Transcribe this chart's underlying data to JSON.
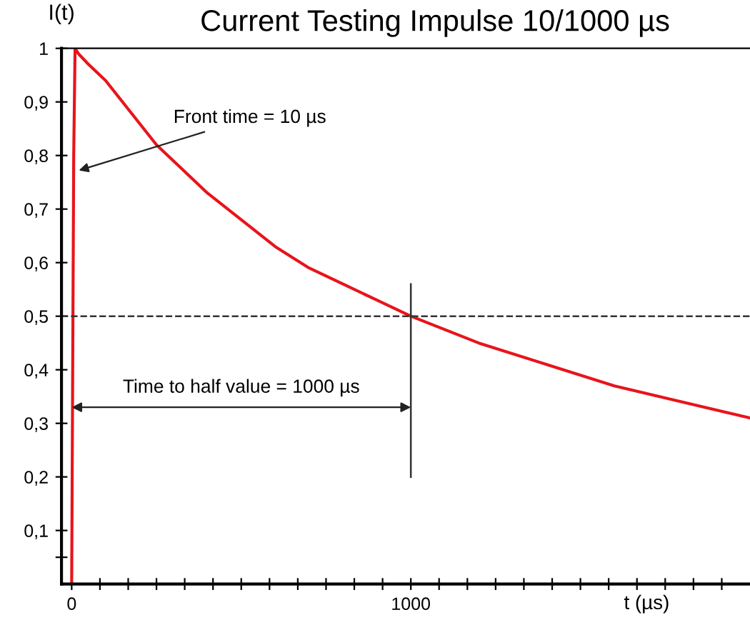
{
  "chart_data": {
    "type": "line",
    "title": "Current Testing Impulse 10/1000 µs",
    "xlabel": "t (µs)",
    "ylabel": "I(t)",
    "series": [
      {
        "color": "#e8141b",
        "x": [
          0,
          3,
          6,
          10,
          20,
          50,
          100,
          150,
          200,
          250,
          300,
          400,
          500,
          600,
          700,
          800,
          900,
          1000,
          1200,
          1400,
          1600,
          1800,
          2000
        ],
        "values": [
          0,
          0.4,
          0.8,
          1,
          0.99,
          0.97,
          0.94,
          0.9,
          0.86,
          0.82,
          0.79,
          0.73,
          0.68,
          0.63,
          0.59,
          0.56,
          0.53,
          0.5,
          0.45,
          0.41,
          0.37,
          0.34,
          0.31
        ]
      }
    ],
    "xlim": [
      -30,
      2000
    ],
    "ylim": [
      0,
      1
    ],
    "xticks": [
      {
        "value": 0,
        "label": "0"
      },
      {
        "value": 83.3,
        "label": null
      },
      {
        "value": 166.7,
        "label": null
      },
      {
        "value": 250,
        "label": null
      },
      {
        "value": 333.3,
        "label": null
      },
      {
        "value": 416.7,
        "label": null
      },
      {
        "value": 500,
        "label": null
      },
      {
        "value": 583.3,
        "label": null
      },
      {
        "value": 666.7,
        "label": null
      },
      {
        "value": 750,
        "label": null
      },
      {
        "value": 833.3,
        "label": null
      },
      {
        "value": 916.7,
        "label": null
      },
      {
        "value": 1000,
        "label": "1000"
      },
      {
        "value": 1083.3,
        "label": null
      },
      {
        "value": 1166.7,
        "label": null
      },
      {
        "value": 1250,
        "label": null
      },
      {
        "value": 1333.3,
        "label": null
      },
      {
        "value": 1416.7,
        "label": null
      },
      {
        "value": 1500,
        "label": null
      },
      {
        "value": 1583.3,
        "label": null
      },
      {
        "value": 1666.7,
        "label": null
      },
      {
        "value": 1750,
        "label": null
      },
      {
        "value": 1833.3,
        "label": null
      },
      {
        "value": 1916.7,
        "label": null
      }
    ],
    "yticks": [
      {
        "value": 0.05,
        "label": null
      },
      {
        "value": 0.1,
        "label": "0,1"
      },
      {
        "value": 0.2,
        "label": "0,2"
      },
      {
        "value": 0.3,
        "label": "0,3"
      },
      {
        "value": 0.4,
        "label": "0,4"
      },
      {
        "value": 0.5,
        "label": "0,5"
      },
      {
        "value": 0.6,
        "label": "0,6"
      },
      {
        "value": 0.7,
        "label": "0,7"
      },
      {
        "value": 0.8,
        "label": "0,8"
      },
      {
        "value": 0.9,
        "label": "0,9"
      },
      {
        "value": 1,
        "label": "1"
      }
    ],
    "ref_lines": [
      {
        "axis": "y",
        "value": 0.5,
        "line_style": "dashed",
        "color": "#333333"
      },
      {
        "axis": "x",
        "value": 1000,
        "color": "#333333"
      }
    ],
    "annotations": [
      {
        "text": "Front time = 10 µs",
        "x": 10,
        "y": 0.77
      },
      {
        "text": "Time to half value = 1000 µs",
        "x": 1000,
        "y": 0.33
      }
    ],
    "grid": false,
    "marker": "none",
    "line_style": "solid"
  }
}
